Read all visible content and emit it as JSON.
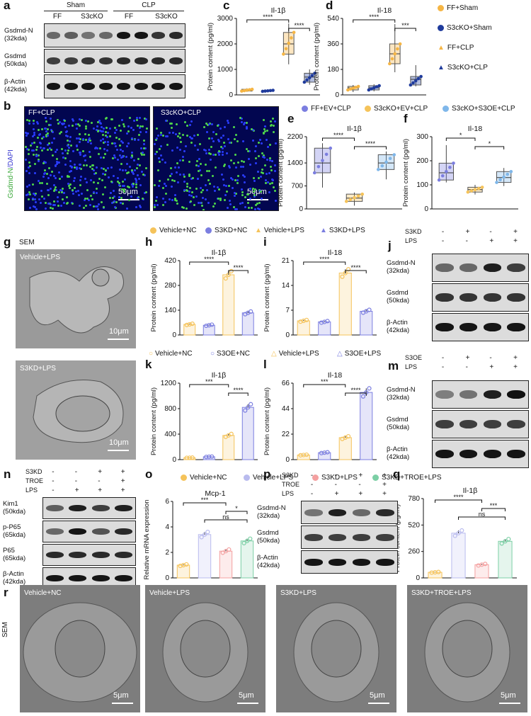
{
  "panels": {
    "a": "a",
    "b": "b",
    "c": "c",
    "d": "d",
    "e": "e",
    "f": "f",
    "g": "g",
    "h": "h",
    "i": "i",
    "j": "j",
    "k": "k",
    "l": "l",
    "m": "m",
    "n": "n",
    "o": "o",
    "p": "p",
    "q": "q",
    "r": "r"
  },
  "colors": {
    "ff": "#f5b544",
    "s3cko": "#1f3b9c",
    "fev": "#7b7ee0",
    "s3cko_ev": "#f5c35a",
    "s3cko_s3oe": "#7fb7ea",
    "vehicle_nc": "#f5c35a",
    "s3kd_nc": "#7b7ee0",
    "vehicle_lps": "#f5c35a",
    "s3kd_lps": "#7b7ee0",
    "s3kd_troe": "#7ccfa5",
    "pink": "#f4a0a0",
    "fill_orange": "#fde9c2",
    "fill_blue": "#dfe0f7"
  },
  "blot_a": {
    "groups": [
      "Sham",
      "CLP"
    ],
    "subgroups": [
      "FF",
      "S3cKO",
      "FF",
      "S3cKO"
    ],
    "rows": [
      "Gsdmd-N\n(32kda)",
      "Gsdmd\n(50kda)",
      "β-Actin\n(42kda)"
    ]
  },
  "blot_j": {
    "conds": [
      "S3KD",
      "LPS"
    ],
    "signs": [
      [
        "-",
        "+",
        "-",
        "+"
      ],
      [
        "-",
        "-",
        "+",
        "+"
      ]
    ],
    "rows": [
      "Gsdmd-N\n(32kda)",
      "Gsdmd\n(50kda)",
      "β-Actin\n(42kda)"
    ]
  },
  "blot_m": {
    "conds": [
      "S3OE",
      "LPS"
    ],
    "signs": [
      [
        "-",
        "+",
        "-",
        "+"
      ],
      [
        "-",
        "-",
        "+",
        "+"
      ]
    ],
    "rows": [
      "Gsdmd-N\n(32kda)",
      "Gsdmd\n(50kda)",
      "β-Actin\n(42kda)"
    ]
  },
  "blot_n": {
    "conds": [
      "S3KD",
      "TROE",
      "LPS"
    ],
    "signs": [
      [
        "-",
        "-",
        "+",
        "+"
      ],
      [
        "-",
        "-",
        "-",
        "+"
      ],
      [
        "-",
        "+",
        "+",
        "+"
      ]
    ],
    "rows": [
      "Kim1\n(50kda)",
      "p-P65\n(65kda)",
      "P65\n(65kda)",
      "β-Actin\n(42kda)"
    ]
  },
  "blot_p": {
    "conds": [
      "S3KD",
      "TROE",
      "LPS"
    ],
    "signs": [
      [
        "-",
        "-",
        "+",
        "+"
      ],
      [
        "-",
        "-",
        "-",
        "+"
      ],
      [
        "-",
        "+",
        "+",
        "+"
      ]
    ],
    "rows": [
      "Gsdmd-N\n(32kda)",
      "Gsdmd\n(50kda)",
      "β-Actin\n(42kda)"
    ]
  },
  "legend_cd": [
    "FF+Sham",
    "S3cKO+Sham",
    "FF+CLP",
    "S3cKO+CLP"
  ],
  "legend_ef": [
    "FF+EV+CLP",
    "S3cKO+EV+CLP",
    "S3cKO+S3OE+CLP"
  ],
  "legend_hi": [
    "Vehicle+NC",
    "S3KD+NC",
    "Vehicle+LPS",
    "S3KD+LPS"
  ],
  "legend_kl": [
    "Vehicle+NC",
    "S3OE+NC",
    "Vehicle+LPS",
    "S3OE+LPS"
  ],
  "legend_oq": [
    "Vehicle+NC",
    "Vehicle+LPS",
    "S3KD+LPS",
    "S3KD+TROE+LPS"
  ],
  "micro_b": {
    "left": "FF+CLP",
    "right": "S3cKO+CLP",
    "stain_green": "Gsdmd-N",
    "stain_blue": "DAPI",
    "scale": "50μm"
  },
  "sem_g": {
    "label": "SEM",
    "top": "Vehicle+LPS",
    "bottom": "S3KD+LPS",
    "scale": "10μm"
  },
  "sem_r": {
    "label": "SEM",
    "panels": [
      "Vehicle+NC",
      "Vehicle+LPS",
      "S3KD+LPS",
      "S3KD+TROE+LPS"
    ],
    "scale": "5μm"
  },
  "chart_data": [
    {
      "id": "c",
      "type": "box",
      "title": "Il-1β",
      "ylabel": "Protein content (pg/ml)",
      "ylim": [
        0,
        3000
      ],
      "yticks": [
        0,
        1000,
        2000,
        3000
      ],
      "groups": [
        "FF+Sham",
        "S3cKO+Sham",
        "FF+CLP",
        "S3cKO+CLP"
      ],
      "medians": [
        180,
        160,
        2000,
        700
      ],
      "q1": [
        150,
        140,
        1600,
        500
      ],
      "q3": [
        220,
        180,
        2450,
        850
      ],
      "min": [
        120,
        120,
        1200,
        400
      ],
      "max": [
        260,
        200,
        2800,
        1000
      ],
      "significance": [
        "****",
        "****"
      ]
    },
    {
      "id": "d",
      "type": "box",
      "title": "Il-18",
      "ylabel": "Protein content (pg/ml)",
      "ylim": [
        0,
        540
      ],
      "yticks": [
        0,
        180,
        360,
        540
      ],
      "groups": [
        "FF+Sham",
        "S3cKO+Sham",
        "FF+CLP",
        "S3cKO+CLP"
      ],
      "medians": [
        50,
        50,
        290,
        110
      ],
      "q1": [
        35,
        35,
        220,
        70
      ],
      "q3": [
        60,
        65,
        360,
        130
      ],
      "min": [
        20,
        25,
        160,
        60
      ],
      "max": [
        70,
        75,
        500,
        210
      ],
      "significance": [
        "****",
        "***"
      ]
    },
    {
      "id": "e",
      "type": "box",
      "title": "Il-1β",
      "ylabel": "Protein content (pg/ml)",
      "ylim": [
        0,
        2200
      ],
      "yticks": [
        0,
        700,
        1400,
        2200
      ],
      "groups": [
        "FF+EV+CLP",
        "S3cKO+EV+CLP",
        "S3cKO+S3OE+CLP"
      ],
      "medians": [
        1400,
        330,
        1400
      ],
      "q1": [
        1100,
        230,
        1200
      ],
      "q3": [
        1850,
        450,
        1650
      ],
      "min": [
        650,
        100,
        900
      ],
      "max": [
        2000,
        500,
        1750
      ],
      "significance": [
        "****",
        "****"
      ]
    },
    {
      "id": "f",
      "type": "box",
      "title": "Il-18",
      "ylabel": "Protein content (pg/ml)",
      "ylim": [
        0,
        300
      ],
      "yticks": [
        0,
        100,
        200,
        300
      ],
      "groups": [
        "FF+EV+CLP",
        "S3cKO+EV+CLP",
        "S3cKO+S3OE+CLP"
      ],
      "medians": [
        150,
        80,
        130
      ],
      "q1": [
        120,
        70,
        110
      ],
      "q3": [
        190,
        90,
        155
      ],
      "min": [
        110,
        60,
        95
      ],
      "max": [
        265,
        100,
        170
      ],
      "significance": [
        "*",
        "*"
      ]
    },
    {
      "id": "h",
      "type": "bar",
      "title": "Il-1β",
      "ylabel": "Protein content (pg/ml)",
      "ylim": [
        0,
        420
      ],
      "yticks": [
        0,
        140,
        280,
        420
      ],
      "groups": [
        "Vehicle+NC",
        "S3KD+NC",
        "Vehicle+LPS",
        "S3KD+LPS"
      ],
      "values": [
        60,
        55,
        340,
        125
      ],
      "significance": [
        "****",
        "****"
      ]
    },
    {
      "id": "i",
      "type": "bar",
      "title": "Il-18",
      "ylabel": "Protein content (pg/ml)",
      "ylim": [
        0,
        21
      ],
      "yticks": [
        0,
        7,
        14,
        21
      ],
      "groups": [
        "Vehicle+NC",
        "S3KD+NC",
        "Vehicle+LPS",
        "S3KD+LPS"
      ],
      "values": [
        4,
        3.7,
        17.5,
        6.7
      ],
      "significance": [
        "****",
        "****"
      ]
    },
    {
      "id": "k",
      "type": "bar",
      "title": "Il-1β",
      "ylabel": "Protein content (pg/ml)",
      "ylim": [
        0,
        1200
      ],
      "yticks": [
        0,
        400,
        800,
        1200
      ],
      "groups": [
        "Vehicle+NC",
        "S3OE+NC",
        "Vehicle+LPS",
        "S3OE+LPS"
      ],
      "values": [
        30,
        45,
        380,
        820
      ],
      "significance": [
        "***",
        "****"
      ]
    },
    {
      "id": "l",
      "type": "bar",
      "title": "Il-18",
      "ylabel": "Protein content (pg/ml)",
      "ylim": [
        0,
        66
      ],
      "yticks": [
        0,
        22,
        44,
        66
      ],
      "groups": [
        "Vehicle+NC",
        "S3OE+NC",
        "Vehicle+LPS",
        "S3OE+LPS"
      ],
      "values": [
        4,
        6,
        19,
        58
      ],
      "significance": [
        "***",
        "****"
      ]
    },
    {
      "id": "o",
      "type": "bar",
      "title": "Mcp-1",
      "ylabel": "Relative mRNA expression",
      "ylim": [
        0,
        6
      ],
      "yticks": [
        0,
        2,
        4,
        6
      ],
      "groups": [
        "Vehicle+NC",
        "Vehicle+LPS",
        "S3KD+LPS",
        "S3KD+TROE+LPS"
      ],
      "values": [
        1.0,
        3.4,
        2.1,
        2.9
      ],
      "significance": [
        "***",
        "*",
        "ns"
      ]
    },
    {
      "id": "q",
      "type": "bar",
      "title": "Il-1β",
      "ylabel": "Protein content (pg/ml)",
      "ylim": [
        0,
        780
      ],
      "yticks": [
        0,
        260,
        520,
        780
      ],
      "groups": [
        "Vehicle+NC",
        "Vehicle+LPS",
        "S3KD+LPS",
        "S3KD+TROE+LPS"
      ],
      "values": [
        55,
        440,
        130,
        360
      ],
      "significance": [
        "****",
        "***",
        "ns"
      ]
    }
  ]
}
